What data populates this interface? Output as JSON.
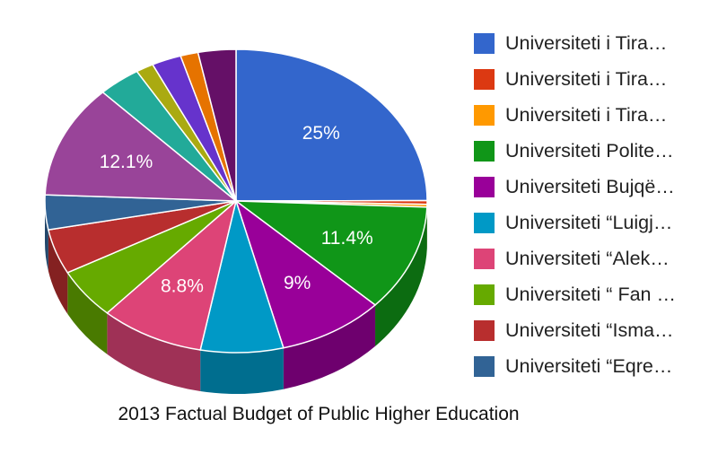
{
  "chart_data": {
    "type": "pie",
    "caption": "2013 Factual Budget of Public Higher Education",
    "slices": [
      {
        "legend": "Universiteti i Tira…",
        "value": 25,
        "label": "25%",
        "color": "#3366cc"
      },
      {
        "legend": "Universiteti i Tira…",
        "value": 0.4,
        "label": "",
        "color": "#dc3912"
      },
      {
        "legend": "Universiteti i Tira…",
        "value": 0.3,
        "label": "",
        "color": "#ff9900"
      },
      {
        "legend": "Universiteti Polite…",
        "value": 11.4,
        "label": "11.4%",
        "color": "#109618"
      },
      {
        "legend": "Universiteti Bujqë…",
        "value": 9,
        "label": "9%",
        "color": "#990099"
      },
      {
        "legend": "Universiteti “Luigj…",
        "value": 7,
        "label": "",
        "color": "#0099c6"
      },
      {
        "legend": "Universiteti “Alek…",
        "value": 8.8,
        "label": "8.8%",
        "color": "#dd4477"
      },
      {
        "legend": "Universiteti “ Fan …",
        "value": 5.4,
        "label": "",
        "color": "#66aa00"
      },
      {
        "legend": "Universiteti “Isma…",
        "value": 4.8,
        "label": "",
        "color": "#b82e2e"
      },
      {
        "legend": "Universiteti “Eqre…",
        "value": 3.7,
        "label": "",
        "color": "#316395"
      },
      {
        "legend": "",
        "value": 12.1,
        "label": "12.1%",
        "color": "#994499"
      },
      {
        "legend": "",
        "value": 3.6,
        "label": "",
        "color": "#22aa99"
      },
      {
        "legend": "",
        "value": 1.5,
        "label": "",
        "color": "#aaaa11"
      },
      {
        "legend": "",
        "value": 2.5,
        "label": "",
        "color": "#6633cc"
      },
      {
        "legend": "",
        "value": 1.5,
        "label": "",
        "color": "#e67300"
      },
      {
        "legend": "",
        "value": 3.2,
        "label": "",
        "color": "#651067"
      }
    ]
  }
}
